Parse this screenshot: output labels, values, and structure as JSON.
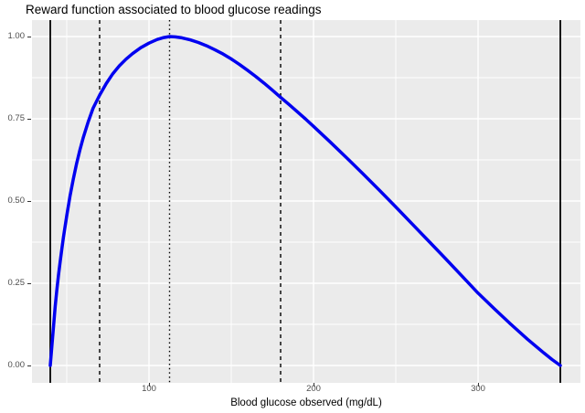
{
  "title": "Reward function associated to blood glucose readings",
  "x_axis_title": "Blood glucose observed (mg/dL)",
  "colors": {
    "panel_background": "#EBEBEB",
    "gridline": "#FFFFFF",
    "curve": "#0000F0",
    "threshold_line": "#000000",
    "tick_text": "#4D4D4D",
    "title_text": "#000000"
  },
  "chart_data": {
    "type": "line",
    "title": "Reward function associated to blood glucose readings",
    "xlabel": "Blood glucose observed (mg/dL)",
    "ylabel": "",
    "xlim": [
      29,
      362
    ],
    "ylim": [
      -0.05,
      1.05
    ],
    "grid": true,
    "legend_position": "none",
    "x_ticks": [
      100,
      200,
      300
    ],
    "x_tick_labels": [
      "100",
      "200",
      "300"
    ],
    "x_minor_ticks": [
      50,
      150,
      250,
      350
    ],
    "y_ticks": [
      0,
      0.25,
      0.5,
      0.75,
      1
    ],
    "y_tick_labels": [
      "0.00",
      "0.25",
      "0.50",
      "0.75",
      "1.00"
    ],
    "y_minor_ticks": [
      0.125,
      0.375,
      0.625,
      0.875
    ],
    "vlines": [
      {
        "x": 40,
        "style": "solid"
      },
      {
        "x": 70,
        "style": "dashed"
      },
      {
        "x": 112.5,
        "style": "dotted"
      },
      {
        "x": 180,
        "style": "dashed"
      },
      {
        "x": 350,
        "style": "solid"
      }
    ],
    "series": [
      {
        "name": "reward",
        "color": "#0000F0",
        "points": [
          [
            40,
            0
          ],
          [
            41,
            0.06
          ],
          [
            42,
            0.12
          ],
          [
            43,
            0.18
          ],
          [
            44,
            0.23
          ],
          [
            45,
            0.275
          ],
          [
            46,
            0.315
          ],
          [
            47,
            0.353
          ],
          [
            48,
            0.39
          ],
          [
            50,
            0.455
          ],
          [
            52,
            0.515
          ],
          [
            54,
            0.567
          ],
          [
            56,
            0.614
          ],
          [
            58,
            0.655
          ],
          [
            60,
            0.692
          ],
          [
            63,
            0.74
          ],
          [
            66,
            0.782
          ],
          [
            70,
            0.822
          ],
          [
            74,
            0.857
          ],
          [
            78,
            0.887
          ],
          [
            82,
            0.911
          ],
          [
            86,
            0.931
          ],
          [
            90,
            0.948
          ],
          [
            95,
            0.966
          ],
          [
            100,
            0.98
          ],
          [
            105,
            0.991
          ],
          [
            109,
            0.997
          ],
          [
            112.5,
            1
          ],
          [
            116,
            0.999
          ],
          [
            120,
            0.996
          ],
          [
            125,
            0.99
          ],
          [
            130,
            0.982
          ],
          [
            135,
            0.972
          ],
          [
            140,
            0.96
          ],
          [
            145,
            0.947
          ],
          [
            150,
            0.932
          ],
          [
            155,
            0.915
          ],
          [
            160,
            0.897
          ],
          [
            165,
            0.878
          ],
          [
            170,
            0.858
          ],
          [
            175,
            0.837
          ],
          [
            180,
            0.815
          ],
          [
            185,
            0.794
          ],
          [
            190,
            0.772
          ],
          [
            195,
            0.75
          ],
          [
            200,
            0.727
          ],
          [
            210,
            0.68
          ],
          [
            220,
            0.632
          ],
          [
            230,
            0.583
          ],
          [
            240,
            0.533
          ],
          [
            250,
            0.482
          ],
          [
            260,
            0.43
          ],
          [
            270,
            0.378
          ],
          [
            280,
            0.326
          ],
          [
            290,
            0.273
          ],
          [
            300,
            0.22
          ],
          [
            310,
            0.172
          ],
          [
            320,
            0.125
          ],
          [
            330,
            0.08
          ],
          [
            340,
            0.038
          ],
          [
            345,
            0.018
          ],
          [
            350,
            0
          ]
        ]
      }
    ]
  }
}
